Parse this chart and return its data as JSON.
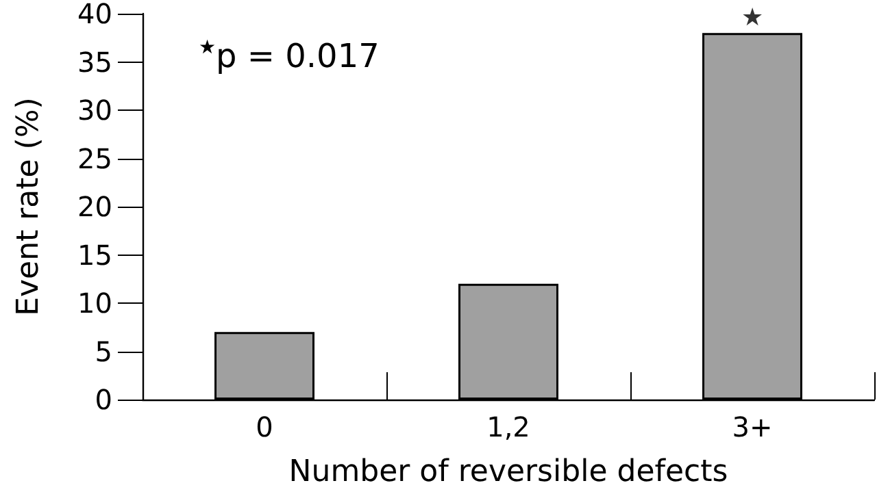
{
  "chart_data": {
    "type": "bar",
    "xlabel": "Number of reversible defects",
    "ylabel": "Event rate (%)",
    "categories": [
      "0",
      "1,2",
      "3+"
    ],
    "values": [
      7,
      12,
      38
    ],
    "color": "#a0a0a0",
    "ylim": [
      0,
      40
    ],
    "yticks": [
      0,
      5,
      10,
      15,
      20,
      25,
      30,
      35,
      40
    ],
    "grid": false,
    "annotations": [
      "$^{★}$p = 0.017",
      {
        "text": "★",
        "x": "3+",
        "y": 38
      }
    ]
  }
}
